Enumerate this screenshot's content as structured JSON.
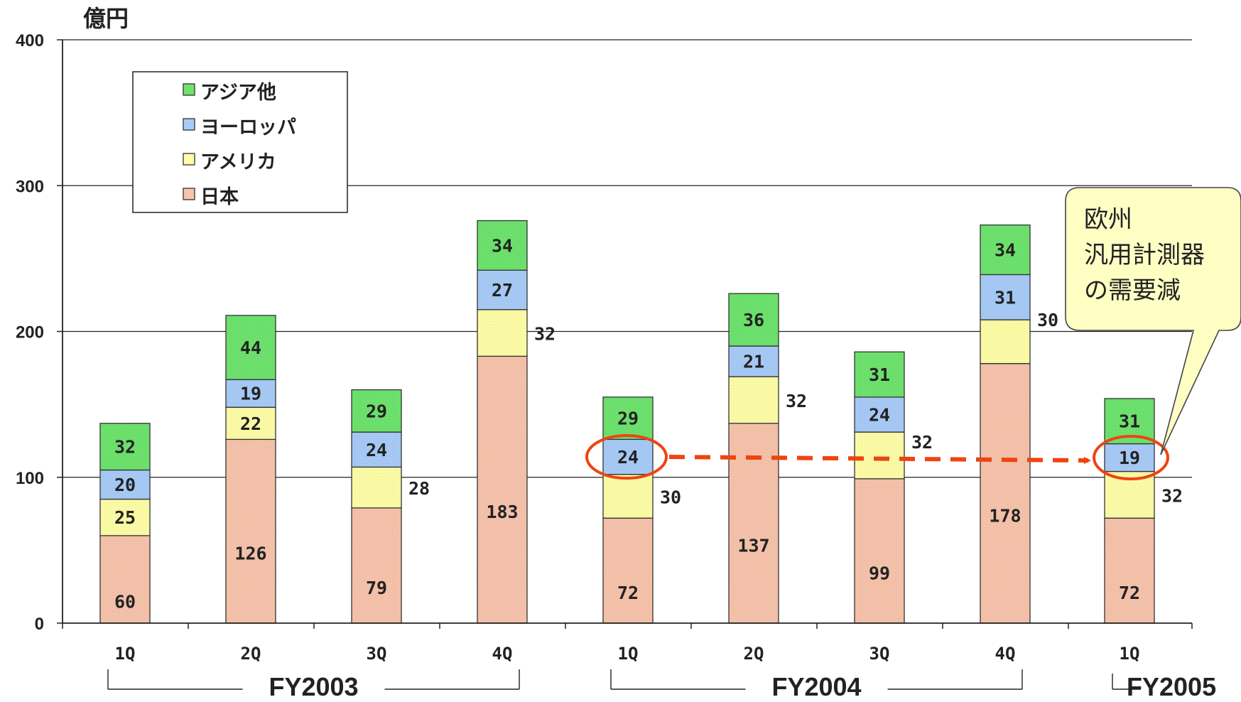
{
  "chart_data": {
    "type": "bar",
    "stacked": true,
    "unit_label": "億円",
    "ylim": [
      0,
      400
    ],
    "yticks": [
      "0",
      "100",
      "200",
      "300",
      "400"
    ],
    "grid": true,
    "legend_position": "top-left",
    "categories": [
      "1Q",
      "2Q",
      "3Q",
      "4Q",
      "1Q",
      "2Q",
      "3Q",
      "4Q",
      "1Q"
    ],
    "groups": [
      {
        "label": "FY2003",
        "first": 0,
        "last": 3
      },
      {
        "label": "FY2004",
        "first": 4,
        "last": 7
      },
      {
        "label": "FY2005",
        "first": 8,
        "last": 8
      }
    ],
    "series": [
      {
        "name": "日本",
        "color": "#f8c4ac",
        "values": [
          60,
          126,
          79,
          183,
          72,
          137,
          99,
          178,
          72
        ]
      },
      {
        "name": "アメリカ",
        "color": "#ffffa8",
        "values": [
          25,
          22,
          28,
          32,
          30,
          32,
          32,
          30,
          32
        ]
      },
      {
        "name": "ヨーロッパ",
        "color": "#a8ccf8",
        "values": [
          20,
          19,
          24,
          27,
          24,
          21,
          24,
          31,
          19
        ]
      },
      {
        "name": "アジア他",
        "color": "#6ee46e",
        "values": [
          32,
          44,
          29,
          34,
          29,
          36,
          31,
          34,
          31
        ]
      }
    ],
    "legend_order": [
      "アジア他",
      "ヨーロッパ",
      "アメリカ",
      "日本"
    ],
    "highlight": {
      "series": "ヨーロッパ",
      "from_index": 4,
      "to_index": 8,
      "color": "#ee4411"
    },
    "callout": {
      "lines": [
        "欧州",
        "汎用計測器",
        "の需要減"
      ],
      "color": "#ffffc4",
      "target_index": 8
    }
  }
}
